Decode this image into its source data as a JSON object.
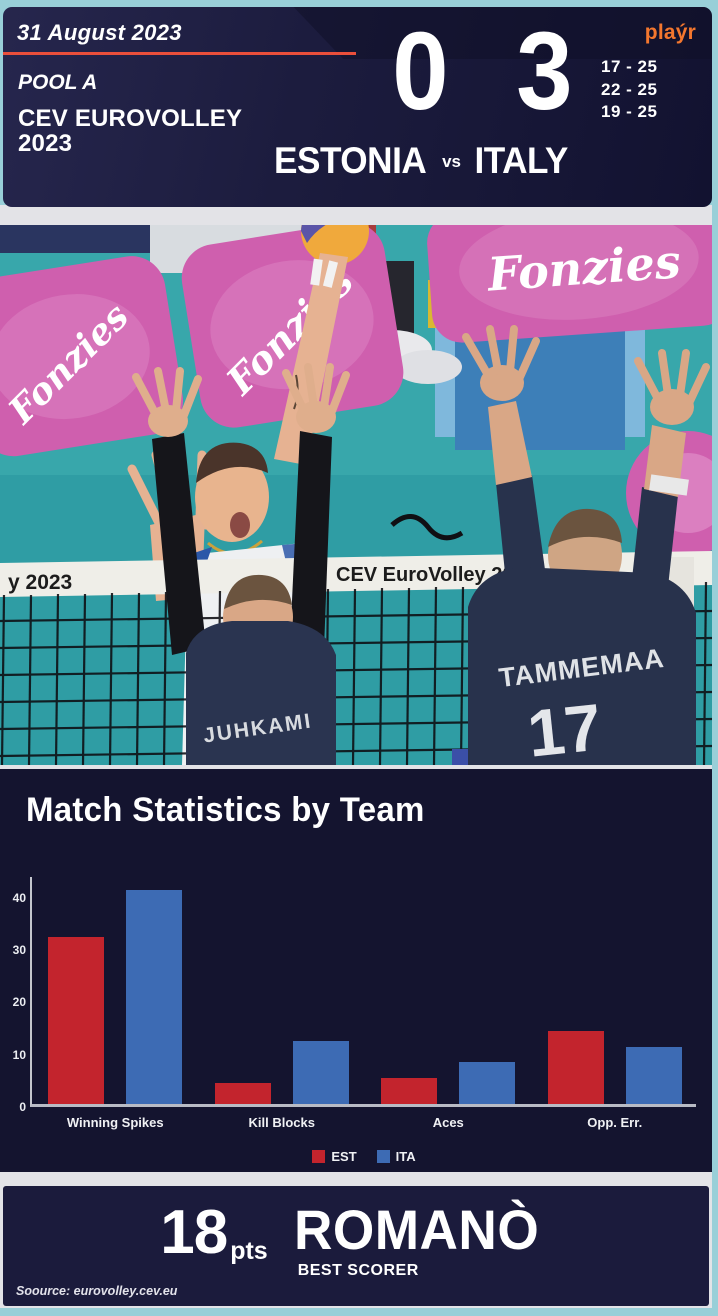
{
  "header": {
    "date": "31 August 2023",
    "pool": "POOL A",
    "competition": "CEV EUROVOLLEY 2023",
    "brand": "plaýr",
    "score_home": "0",
    "score_away": "3",
    "set_scores": [
      "17 - 25",
      "22 - 25",
      "19 - 25"
    ],
    "team_home": "ESTONIA",
    "vs": "vs",
    "team_away": "ITALY",
    "accent_color": "#ea4f3b",
    "brand_color": "#f4772e"
  },
  "photo": {
    "sponsor_text": "Fonzies",
    "net_band_left": "y 2023",
    "net_band_center": "CEV EuroVolley 2023",
    "player_left_name": "JUHKAMI",
    "player_right_name": "TAMMEMAA",
    "player_right_number": "17"
  },
  "chart_data": {
    "type": "bar",
    "title": "Match Statistics by Team",
    "categories": [
      "Winning Spikes",
      "Kill Blocks",
      "Aces",
      "Opp. Err."
    ],
    "series": [
      {
        "name": "EST",
        "color": "#c3242d",
        "values": [
          32,
          4,
          5,
          14
        ]
      },
      {
        "name": "ITA",
        "color": "#3d6bb4",
        "values": [
          41,
          12,
          8,
          11
        ]
      }
    ],
    "xlabel": "",
    "ylabel": "",
    "y_ticks": [
      0,
      10,
      20,
      30,
      40
    ],
    "ylim": [
      0,
      44
    ],
    "grid": false,
    "legend_position": "bottom-center"
  },
  "footer": {
    "points": "18",
    "points_unit": "pts",
    "player": "ROMANÒ",
    "label": "BEST SCORER",
    "source": "Soource: eurovolley.cev.eu"
  }
}
